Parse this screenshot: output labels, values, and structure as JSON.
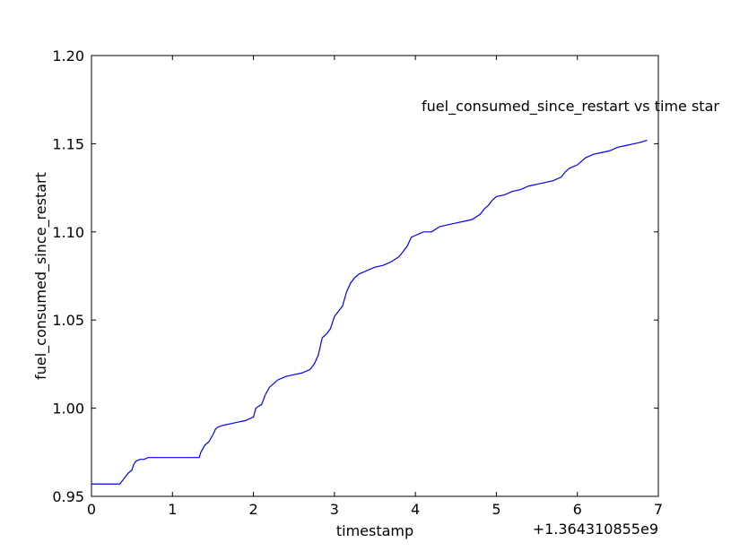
{
  "chart_data": {
    "type": "line",
    "title": "fuel_consumed_since_restart vs time star",
    "xlabel": "timestamp",
    "ylabel": "fuel_consumed_since_restart",
    "x_offset_label": "+1.364310855e9",
    "xlim": [
      0,
      7
    ],
    "ylim": [
      0.95,
      1.2
    ],
    "x_ticks": [
      "0",
      "1",
      "2",
      "3",
      "4",
      "5",
      "6",
      "7"
    ],
    "y_ticks": [
      "0.95",
      "1.00",
      "1.05",
      "1.10",
      "1.15",
      "1.20"
    ],
    "grid": false,
    "series": [
      {
        "color": "#0000ff",
        "x": [
          0.0,
          0.35,
          0.4,
          0.45,
          0.5,
          0.52,
          0.55,
          0.6,
          0.65,
          0.7,
          0.75,
          1.0,
          1.33,
          1.35,
          1.4,
          1.45,
          1.5,
          1.53,
          1.55,
          1.6,
          1.7,
          1.8,
          1.9,
          2.0,
          2.03,
          2.06,
          2.1,
          2.15,
          2.2,
          2.25,
          2.3,
          2.4,
          2.5,
          2.6,
          2.7,
          2.75,
          2.8,
          2.85,
          2.9,
          2.95,
          3.0,
          3.05,
          3.1,
          3.15,
          3.2,
          3.25,
          3.3,
          3.35,
          3.4,
          3.5,
          3.6,
          3.7,
          3.8,
          3.85,
          3.9,
          3.95,
          4.0,
          4.05,
          4.1,
          4.2,
          4.3,
          4.4,
          4.5,
          4.6,
          4.7,
          4.8,
          4.85,
          4.9,
          4.95,
          5.0,
          5.1,
          5.2,
          5.3,
          5.4,
          5.5,
          5.6,
          5.7,
          5.8,
          5.85,
          5.9,
          6.0,
          6.1,
          6.2,
          6.3,
          6.4,
          6.5,
          6.6,
          6.7,
          6.8,
          6.86
        ],
        "y": [
          0.957,
          0.957,
          0.96,
          0.963,
          0.965,
          0.968,
          0.97,
          0.971,
          0.971,
          0.972,
          0.972,
          0.972,
          0.972,
          0.975,
          0.979,
          0.981,
          0.985,
          0.988,
          0.989,
          0.99,
          0.991,
          0.992,
          0.993,
          0.995,
          1.0,
          1.001,
          1.002,
          1.008,
          1.012,
          1.014,
          1.016,
          1.018,
          1.019,
          1.02,
          1.022,
          1.025,
          1.03,
          1.04,
          1.042,
          1.045,
          1.052,
          1.055,
          1.058,
          1.066,
          1.071,
          1.074,
          1.076,
          1.077,
          1.078,
          1.08,
          1.081,
          1.083,
          1.086,
          1.089,
          1.092,
          1.097,
          1.098,
          1.099,
          1.1,
          1.1,
          1.103,
          1.104,
          1.105,
          1.106,
          1.107,
          1.11,
          1.113,
          1.115,
          1.118,
          1.12,
          1.121,
          1.123,
          1.124,
          1.126,
          1.127,
          1.128,
          1.129,
          1.131,
          1.134,
          1.136,
          1.138,
          1.142,
          1.144,
          1.145,
          1.146,
          1.148,
          1.149,
          1.15,
          1.151,
          1.152
        ]
      }
    ]
  }
}
